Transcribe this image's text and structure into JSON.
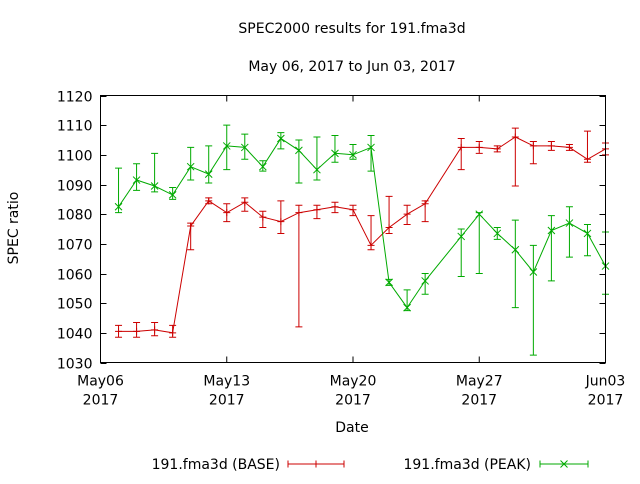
{
  "chart_data": {
    "type": "line",
    "title": "SPEC2000 results for 191.fma3d",
    "subtitle": "May 06, 2017 to Jun 03, 2017",
    "xlabel": "Date",
    "ylabel": "SPEC ratio",
    "ylim": [
      1030,
      1120
    ],
    "yticks": [
      1030,
      1040,
      1050,
      1060,
      1070,
      1080,
      1090,
      1100,
      1110,
      1120
    ],
    "xlim": [
      "2017-05-06",
      "2017-06-03"
    ],
    "xticks": [
      {
        "date": "2017-05-06",
        "line1": "May06",
        "line2": "2017"
      },
      {
        "date": "2017-05-13",
        "line1": "May13",
        "line2": "2017"
      },
      {
        "date": "2017-05-20",
        "line1": "May20",
        "line2": "2017"
      },
      {
        "date": "2017-05-27",
        "line1": "May27",
        "line2": "2017"
      },
      {
        "date": "2017-06-03",
        "line1": "Jun03",
        "line2": "2017"
      }
    ],
    "legend_position": "bottom",
    "series": [
      {
        "name": "191.fma3d (BASE)",
        "color": "#cc0000",
        "marker": "plus",
        "points": [
          {
            "x": "2017-05-07",
            "y": 1040.5,
            "ylo": 1038.5,
            "yhi": 1042.5
          },
          {
            "x": "2017-05-08",
            "y": 1040.5,
            "ylo": 1038.5,
            "yhi": 1043.5
          },
          {
            "x": "2017-05-09",
            "y": 1041.0,
            "ylo": 1039.0,
            "yhi": 1043.5
          },
          {
            "x": "2017-05-10",
            "y": 1040.0,
            "ylo": 1038.5,
            "yhi": 1042.5
          },
          {
            "x": "2017-05-11",
            "y": 1076.0,
            "ylo": 1068.0,
            "yhi": 1077.0
          },
          {
            "x": "2017-05-12",
            "y": 1084.5,
            "ylo": 1083.5,
            "yhi": 1085.5
          },
          {
            "x": "2017-05-13",
            "y": 1080.5,
            "ylo": 1077.5,
            "yhi": 1083.5
          },
          {
            "x": "2017-05-14",
            "y": 1084.0,
            "ylo": 1081.0,
            "yhi": 1085.5
          },
          {
            "x": "2017-05-15",
            "y": 1079.0,
            "ylo": 1075.5,
            "yhi": 1081.0
          },
          {
            "x": "2017-05-16",
            "y": 1077.5,
            "ylo": 1073.5,
            "yhi": 1084.5
          },
          {
            "x": "2017-05-17",
            "y": 1080.5,
            "ylo": 1042.0,
            "yhi": 1083.0
          },
          {
            "x": "2017-05-18",
            "y": 1081.5,
            "ylo": 1078.5,
            "yhi": 1083.0
          },
          {
            "x": "2017-05-19",
            "y": 1082.5,
            "ylo": 1080.5,
            "yhi": 1084.0
          },
          {
            "x": "2017-05-20",
            "y": 1081.5,
            "ylo": 1079.5,
            "yhi": 1083.0
          },
          {
            "x": "2017-05-21",
            "y": 1069.5,
            "ylo": 1068.0,
            "yhi": 1079.5
          },
          {
            "x": "2017-05-22",
            "y": 1075.5,
            "ylo": 1073.5,
            "yhi": 1086.0
          },
          {
            "x": "2017-05-23",
            "y": 1080.0,
            "ylo": 1076.5,
            "yhi": 1083.0
          },
          {
            "x": "2017-05-24",
            "y": 1083.5,
            "ylo": 1077.5,
            "yhi": 1084.5
          },
          {
            "x": "2017-05-26",
            "y": 1102.5,
            "ylo": 1095.0,
            "yhi": 1105.5
          },
          {
            "x": "2017-05-27",
            "y": 1102.5,
            "ylo": 1100.5,
            "yhi": 1104.5
          },
          {
            "x": "2017-05-28",
            "y": 1102.0,
            "ylo": 1101.0,
            "yhi": 1103.0
          },
          {
            "x": "2017-05-29",
            "y": 1106.0,
            "ylo": 1089.5,
            "yhi": 1109.0
          },
          {
            "x": "2017-05-30",
            "y": 1103.0,
            "ylo": 1097.0,
            "yhi": 1104.5
          },
          {
            "x": "2017-05-31",
            "y": 1103.0,
            "ylo": 1101.5,
            "yhi": 1104.5
          },
          {
            "x": "2017-06-01",
            "y": 1102.5,
            "ylo": 1101.5,
            "yhi": 1103.5
          },
          {
            "x": "2017-06-02",
            "y": 1098.5,
            "ylo": 1097.5,
            "yhi": 1108.0
          },
          {
            "x": "2017-06-03",
            "y": 1102.0,
            "ylo": 1100.0,
            "yhi": 1104.0
          }
        ]
      },
      {
        "name": "191.fma3d (PEAK)",
        "color": "#00aa00",
        "marker": "cross",
        "points": [
          {
            "x": "2017-05-07",
            "y": 1082.5,
            "ylo": 1080.5,
            "yhi": 1095.5
          },
          {
            "x": "2017-05-08",
            "y": 1091.5,
            "ylo": 1088.0,
            "yhi": 1097.0
          },
          {
            "x": "2017-05-09",
            "y": 1089.5,
            "ylo": 1087.5,
            "yhi": 1100.5
          },
          {
            "x": "2017-05-10",
            "y": 1086.5,
            "ylo": 1085.0,
            "yhi": 1089.0
          },
          {
            "x": "2017-05-11",
            "y": 1096.0,
            "ylo": 1091.5,
            "yhi": 1102.5
          },
          {
            "x": "2017-05-12",
            "y": 1093.5,
            "ylo": 1090.5,
            "yhi": 1103.0
          },
          {
            "x": "2017-05-13",
            "y": 1103.0,
            "ylo": 1095.0,
            "yhi": 1110.0
          },
          {
            "x": "2017-05-14",
            "y": 1102.5,
            "ylo": 1098.5,
            "yhi": 1107.0
          },
          {
            "x": "2017-05-15",
            "y": 1096.0,
            "ylo": 1094.5,
            "yhi": 1098.0
          },
          {
            "x": "2017-05-16",
            "y": 1105.5,
            "ylo": 1102.0,
            "yhi": 1107.5
          },
          {
            "x": "2017-05-17",
            "y": 1101.5,
            "ylo": 1090.5,
            "yhi": 1105.0
          },
          {
            "x": "2017-05-18",
            "y": 1095.0,
            "ylo": 1091.5,
            "yhi": 1106.0
          },
          {
            "x": "2017-05-19",
            "y": 1100.5,
            "ylo": 1097.5,
            "yhi": 1106.5
          },
          {
            "x": "2017-05-20",
            "y": 1100.0,
            "ylo": 1098.5,
            "yhi": 1103.5
          },
          {
            "x": "2017-05-21",
            "y": 1102.5,
            "ylo": 1094.5,
            "yhi": 1106.5
          },
          {
            "x": "2017-05-22",
            "y": 1057.0,
            "ylo": 1056.0,
            "yhi": 1058.0
          },
          {
            "x": "2017-05-23",
            "y": 1048.5,
            "ylo": 1047.5,
            "yhi": 1054.5
          },
          {
            "x": "2017-05-24",
            "y": 1057.5,
            "ylo": 1053.0,
            "yhi": 1060.0
          },
          {
            "x": "2017-05-26",
            "y": 1072.5,
            "ylo": 1059.0,
            "yhi": 1075.0
          },
          {
            "x": "2017-05-27",
            "y": 1080.0,
            "ylo": 1060.0,
            "yhi": 1080.5
          },
          {
            "x": "2017-05-28",
            "y": 1073.5,
            "ylo": 1071.5,
            "yhi": 1075.5
          },
          {
            "x": "2017-05-29",
            "y": 1068.0,
            "ylo": 1048.5,
            "yhi": 1078.0
          },
          {
            "x": "2017-05-30",
            "y": 1060.5,
            "ylo": 1032.5,
            "yhi": 1069.5
          },
          {
            "x": "2017-05-31",
            "y": 1074.5,
            "ylo": 1057.5,
            "yhi": 1079.5
          },
          {
            "x": "2017-06-01",
            "y": 1077.0,
            "ylo": 1065.5,
            "yhi": 1082.5
          },
          {
            "x": "2017-06-02",
            "y": 1073.5,
            "ylo": 1066.0,
            "yhi": 1076.5
          },
          {
            "x": "2017-06-03",
            "y": 1062.5,
            "ylo": 1053.0,
            "yhi": 1074.0
          }
        ]
      }
    ]
  }
}
